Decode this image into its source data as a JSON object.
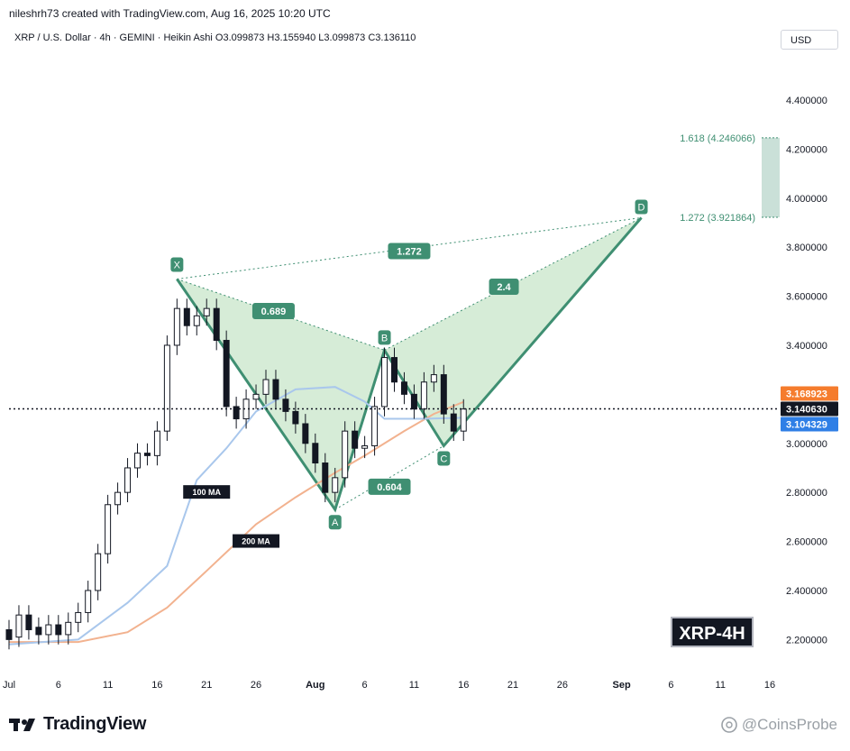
{
  "creator_line": "nileshrh73 created with TradingView.com, Aug 16, 2025 10:20 UTC",
  "header_line": "XRP / U.S. Dollar · 4h · GEMINI · Heikin Ashi  O3.099873  H3.155940  L3.099873  C3.136110",
  "currency_button": "USD",
  "symbol_badge": "XRP-4H",
  "logo_text": "TradingView",
  "watermark": "@CoinsProbe",
  "colors": {
    "pattern_green": "#3f8f72",
    "pattern_fill": "#c8e6c9",
    "ma100": "#a9c7ec",
    "ma200": "#f2b28f",
    "last_price": "#131722",
    "ma200_tag": "#f57c2d",
    "ma100_tag": "#2f7fe6",
    "fib_zone": "#9fc7b8"
  },
  "icons": [
    "tradingview-logo-icon",
    "coinsprobe-icon"
  ],
  "chart_data": {
    "type": "candlestick",
    "chart_style": "Heikin Ashi",
    "symbol": "XRP / U.S. Dollar",
    "interval": "4h",
    "exchange": "GEMINI",
    "ohlc": {
      "open": 3.099873,
      "high": 3.15594,
      "low": 3.099873,
      "close": 3.13611
    },
    "y_axis": {
      "ticks": [
        "4.400000",
        "4.200000",
        "4.000000",
        "3.800000",
        "3.600000",
        "3.400000",
        "3.200000",
        "3.000000",
        "2.800000",
        "2.600000",
        "2.400000",
        "2.200000"
      ],
      "range": [
        2.08,
        4.58
      ]
    },
    "x_axis": {
      "ticks": [
        "Jul",
        "6",
        "11",
        "16",
        "21",
        "26",
        "Aug",
        "6",
        "11",
        "16",
        "21",
        "26",
        "Sep",
        "6",
        "11",
        "16"
      ],
      "start_date": "2025-07-01",
      "end_date": "2025-09-17"
    },
    "price_tags": [
      {
        "label": "3.168923",
        "value": 3.168923,
        "series": "200 MA"
      },
      {
        "label": "3.140630",
        "value": 3.14063,
        "series": "last price"
      },
      {
        "label": "3.104329",
        "value": 3.104329,
        "series": "100 MA"
      }
    ],
    "candles": [
      [
        "2025-07-01",
        2.24,
        2.2
      ],
      [
        "2025-07-02",
        2.21,
        2.3
      ],
      [
        "2025-07-03",
        2.3,
        2.24
      ],
      [
        "2025-07-04",
        2.25,
        2.22
      ],
      [
        "2025-07-05",
        2.22,
        2.26
      ],
      [
        "2025-07-06",
        2.26,
        2.22
      ],
      [
        "2025-07-07",
        2.22,
        2.27
      ],
      [
        "2025-07-08",
        2.27,
        2.31
      ],
      [
        "2025-07-09",
        2.31,
        2.4
      ],
      [
        "2025-07-10",
        2.4,
        2.55
      ],
      [
        "2025-07-11",
        2.55,
        2.75
      ],
      [
        "2025-07-12",
        2.75,
        2.8
      ],
      [
        "2025-07-13",
        2.8,
        2.9
      ],
      [
        "2025-07-14",
        2.9,
        2.96
      ],
      [
        "2025-07-15",
        2.96,
        2.95
      ],
      [
        "2025-07-16",
        2.95,
        3.05
      ],
      [
        "2025-07-17",
        3.05,
        3.4
      ],
      [
        "2025-07-18",
        3.4,
        3.55
      ],
      [
        "2025-07-19",
        3.55,
        3.48
      ],
      [
        "2025-07-20",
        3.48,
        3.52
      ],
      [
        "2025-07-21",
        3.52,
        3.55
      ],
      [
        "2025-07-22",
        3.55,
        3.42
      ],
      [
        "2025-07-23",
        3.42,
        3.15
      ],
      [
        "2025-07-24",
        3.15,
        3.1
      ],
      [
        "2025-07-25",
        3.1,
        3.18
      ],
      [
        "2025-07-26",
        3.18,
        3.2
      ],
      [
        "2025-07-27",
        3.2,
        3.26
      ],
      [
        "2025-07-28",
        3.26,
        3.18
      ],
      [
        "2025-07-29",
        3.18,
        3.13
      ],
      [
        "2025-07-30",
        3.13,
        3.08
      ],
      [
        "2025-07-31",
        3.08,
        3.0
      ],
      [
        "2025-08-01",
        3.0,
        2.92
      ],
      [
        "2025-08-02",
        2.92,
        2.8
      ],
      [
        "2025-08-03",
        2.8,
        2.86
      ],
      [
        "2025-08-04",
        2.86,
        3.05
      ],
      [
        "2025-08-05",
        3.05,
        2.98
      ],
      [
        "2025-08-06",
        2.98,
        2.99
      ],
      [
        "2025-08-07",
        2.99,
        3.15
      ],
      [
        "2025-08-08",
        3.15,
        3.35
      ],
      [
        "2025-08-09",
        3.35,
        3.25
      ],
      [
        "2025-08-10",
        3.25,
        3.2
      ],
      [
        "2025-08-11",
        3.2,
        3.14
      ],
      [
        "2025-08-12",
        3.14,
        3.25
      ],
      [
        "2025-08-13",
        3.25,
        3.28
      ],
      [
        "2025-08-14",
        3.28,
        3.12
      ],
      [
        "2025-08-15",
        3.12,
        3.05
      ],
      [
        "2025-08-16",
        3.05,
        3.14
      ]
    ],
    "ma100": [
      [
        "2025-07-01",
        2.18
      ],
      [
        "2025-07-08",
        2.2
      ],
      [
        "2025-07-13",
        2.35
      ],
      [
        "2025-07-17",
        2.5
      ],
      [
        "2025-07-20",
        2.85
      ],
      [
        "2025-07-23",
        2.98
      ],
      [
        "2025-07-26",
        3.13
      ],
      [
        "2025-07-30",
        3.22
      ],
      [
        "2025-08-03",
        3.23
      ],
      [
        "2025-08-06",
        3.17
      ],
      [
        "2025-08-08",
        3.1
      ],
      [
        "2025-08-12",
        3.1
      ],
      [
        "2025-08-16",
        3.104329
      ]
    ],
    "ma200": [
      [
        "2025-07-01",
        2.19
      ],
      [
        "2025-07-08",
        2.19
      ],
      [
        "2025-07-13",
        2.23
      ],
      [
        "2025-07-17",
        2.33
      ],
      [
        "2025-07-21",
        2.48
      ],
      [
        "2025-07-26",
        2.67
      ],
      [
        "2025-07-30",
        2.78
      ],
      [
        "2025-08-03",
        2.88
      ],
      [
        "2025-08-06",
        2.95
      ],
      [
        "2025-08-10",
        3.05
      ],
      [
        "2025-08-13",
        3.12
      ],
      [
        "2025-08-16",
        3.168923
      ]
    ],
    "ma_labels": [
      {
        "label": "100 MA",
        "date": "2025-07-21",
        "value": 2.8
      },
      {
        "label": "200 MA",
        "date": "2025-07-26",
        "value": 2.6
      }
    ],
    "harmonic_pattern": {
      "points": [
        {
          "label": "X",
          "date": "2025-07-18",
          "value": 3.67
        },
        {
          "label": "A",
          "date": "2025-08-03",
          "value": 2.73
        },
        {
          "label": "B",
          "date": "2025-08-08",
          "value": 3.38
        },
        {
          "label": "C",
          "date": "2025-08-14",
          "value": 2.99
        },
        {
          "label": "D",
          "date": "2025-09-03",
          "value": 3.92
        }
      ],
      "ratios": [
        {
          "label": "0.689",
          "between": [
            "X",
            "B"
          ]
        },
        {
          "label": "0.604",
          "between": [
            "A",
            "C"
          ]
        },
        {
          "label": "2.4",
          "between": [
            "B",
            "D"
          ]
        },
        {
          "label": "1.272",
          "between": [
            "X",
            "D"
          ]
        }
      ]
    },
    "fib_zone": [
      {
        "label": "1.618 (4.246066)",
        "value": 4.246066
      },
      {
        "label": "1.272 (3.921864)",
        "value": 3.921864
      }
    ]
  }
}
